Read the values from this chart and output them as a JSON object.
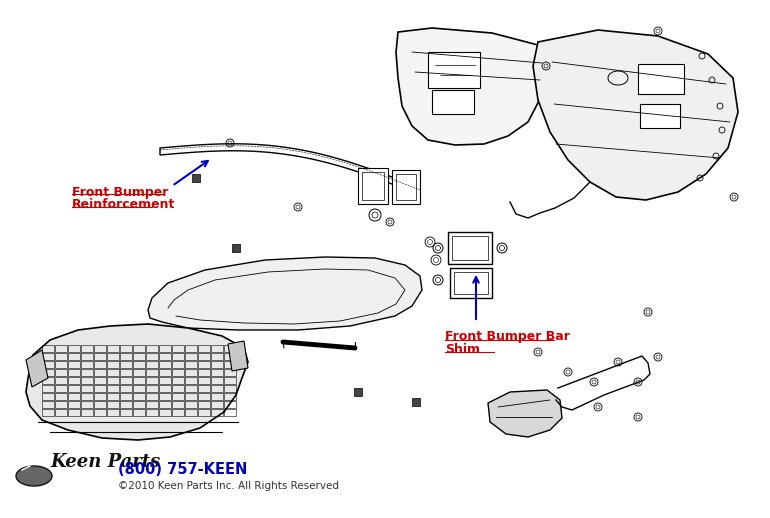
{
  "background_color": "#ffffff",
  "label_reinforcement_line1": "Front Bumper",
  "label_reinforcement_line2": "Reinforcement",
  "label_shim_line1": "Front Bumper Bar",
  "label_shim_line2": "Shim",
  "label_reinforcement_color": "#cc0000",
  "label_shim_color": "#cc0000",
  "arrow_color": "#0000cc",
  "copyright_text": "©2010 Keen Parts Inc. All Rights Reserved",
  "phone_text": "(800) 757-KEEN",
  "phone_color": "#0000bb",
  "line_color": "#000000",
  "fig_width": 7.7,
  "fig_height": 5.18,
  "dpi": 100
}
